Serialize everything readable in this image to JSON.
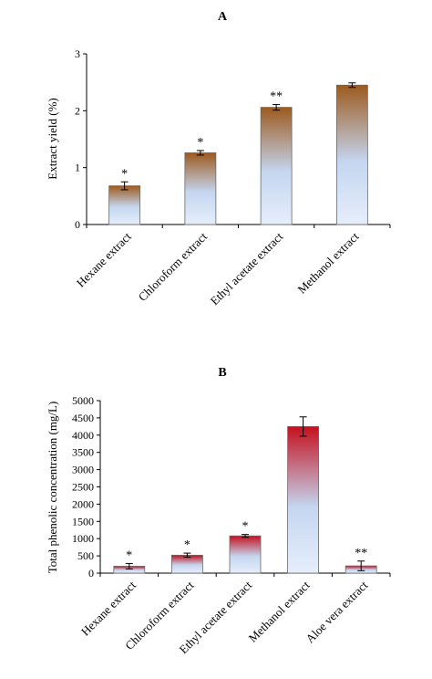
{
  "chart_data": [
    {
      "type": "bar",
      "panel_label": "A",
      "ylabel": "Extract yield (%)",
      "ylim": [
        0,
        3
      ],
      "yticks": [
        0,
        1,
        2,
        3
      ],
      "y_tick_labels": [
        "0",
        "1",
        "2",
        "3"
      ],
      "categories": [
        "Hexane extract",
        "Chloroform extract",
        "Ethyl acetate extract",
        "Methanol extract"
      ],
      "values": [
        0.68,
        1.26,
        2.06,
        2.45
      ],
      "errors": [
        0.07,
        0.04,
        0.05,
        0.04
      ],
      "significance": [
        "*",
        "*",
        "**",
        ""
      ],
      "bar_gradient": {
        "top": "#9c5a1e",
        "bottom": "#c5d6f0"
      },
      "grid": false,
      "legend": "none"
    },
    {
      "type": "bar",
      "panel_label": "B",
      "ylabel": "Total phenolic concentration (mg/L)",
      "ylim": [
        0,
        5000
      ],
      "yticks": [
        0,
        500,
        1000,
        1500,
        2000,
        2500,
        3000,
        3500,
        4000,
        4500,
        5000
      ],
      "y_tick_labels": [
        "0",
        "500",
        "1000",
        "1500",
        "2000",
        "2500",
        "3000",
        "3500",
        "4000",
        "4500",
        "5000"
      ],
      "categories": [
        "Hexane extract",
        "Chloroform extract",
        "Ethyl acetate extract",
        "Methanol extract",
        "Aloe vera extract"
      ],
      "values": [
        200,
        520,
        1080,
        4250,
        210
      ],
      "errors": [
        80,
        60,
        40,
        280,
        140
      ],
      "significance": [
        "*",
        "*",
        "*",
        "",
        "**"
      ],
      "bar_gradient": {
        "top": "#c4101e",
        "bottom": "#c5d6f0"
      },
      "grid": false,
      "legend": "none"
    }
  ]
}
